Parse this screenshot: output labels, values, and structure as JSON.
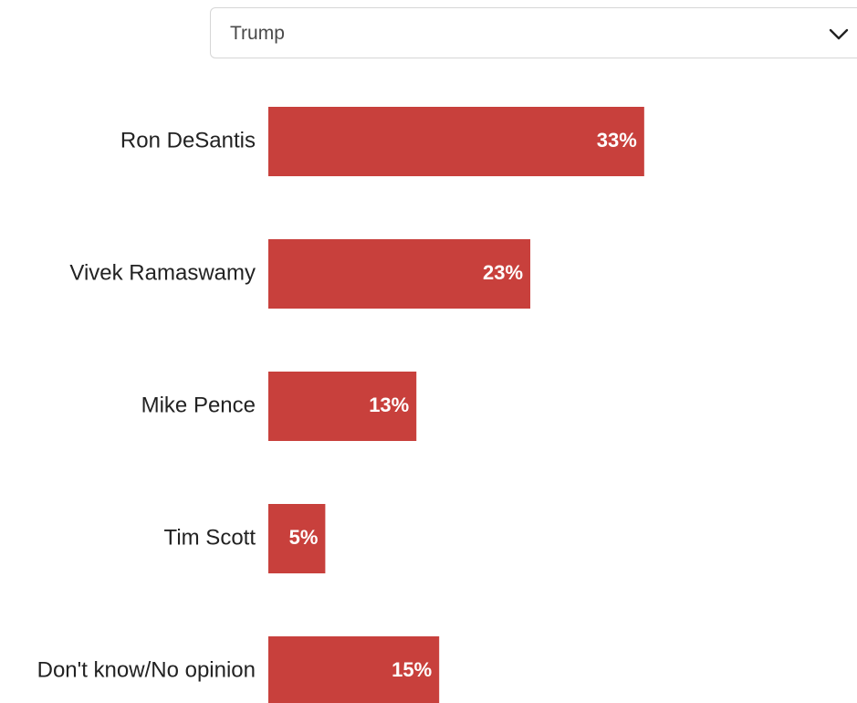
{
  "filter": {
    "selected": "Trump",
    "icon": "chevron-down-icon"
  },
  "colors": {
    "bar": "#c8403c"
  },
  "chart_data": {
    "type": "bar",
    "orientation": "horizontal",
    "categories": [
      "Ron DeSantis",
      "Vivek Ramaswamy",
      "Mike Pence",
      "Tim Scott",
      "Don't know/No opinion"
    ],
    "values": [
      33,
      23,
      13,
      5,
      15
    ],
    "value_labels": [
      "33%",
      "23%",
      "13%",
      "5%",
      "15%"
    ],
    "unit": "%",
    "xlim": [
      0,
      50
    ],
    "grid": false,
    "legend": "none"
  }
}
